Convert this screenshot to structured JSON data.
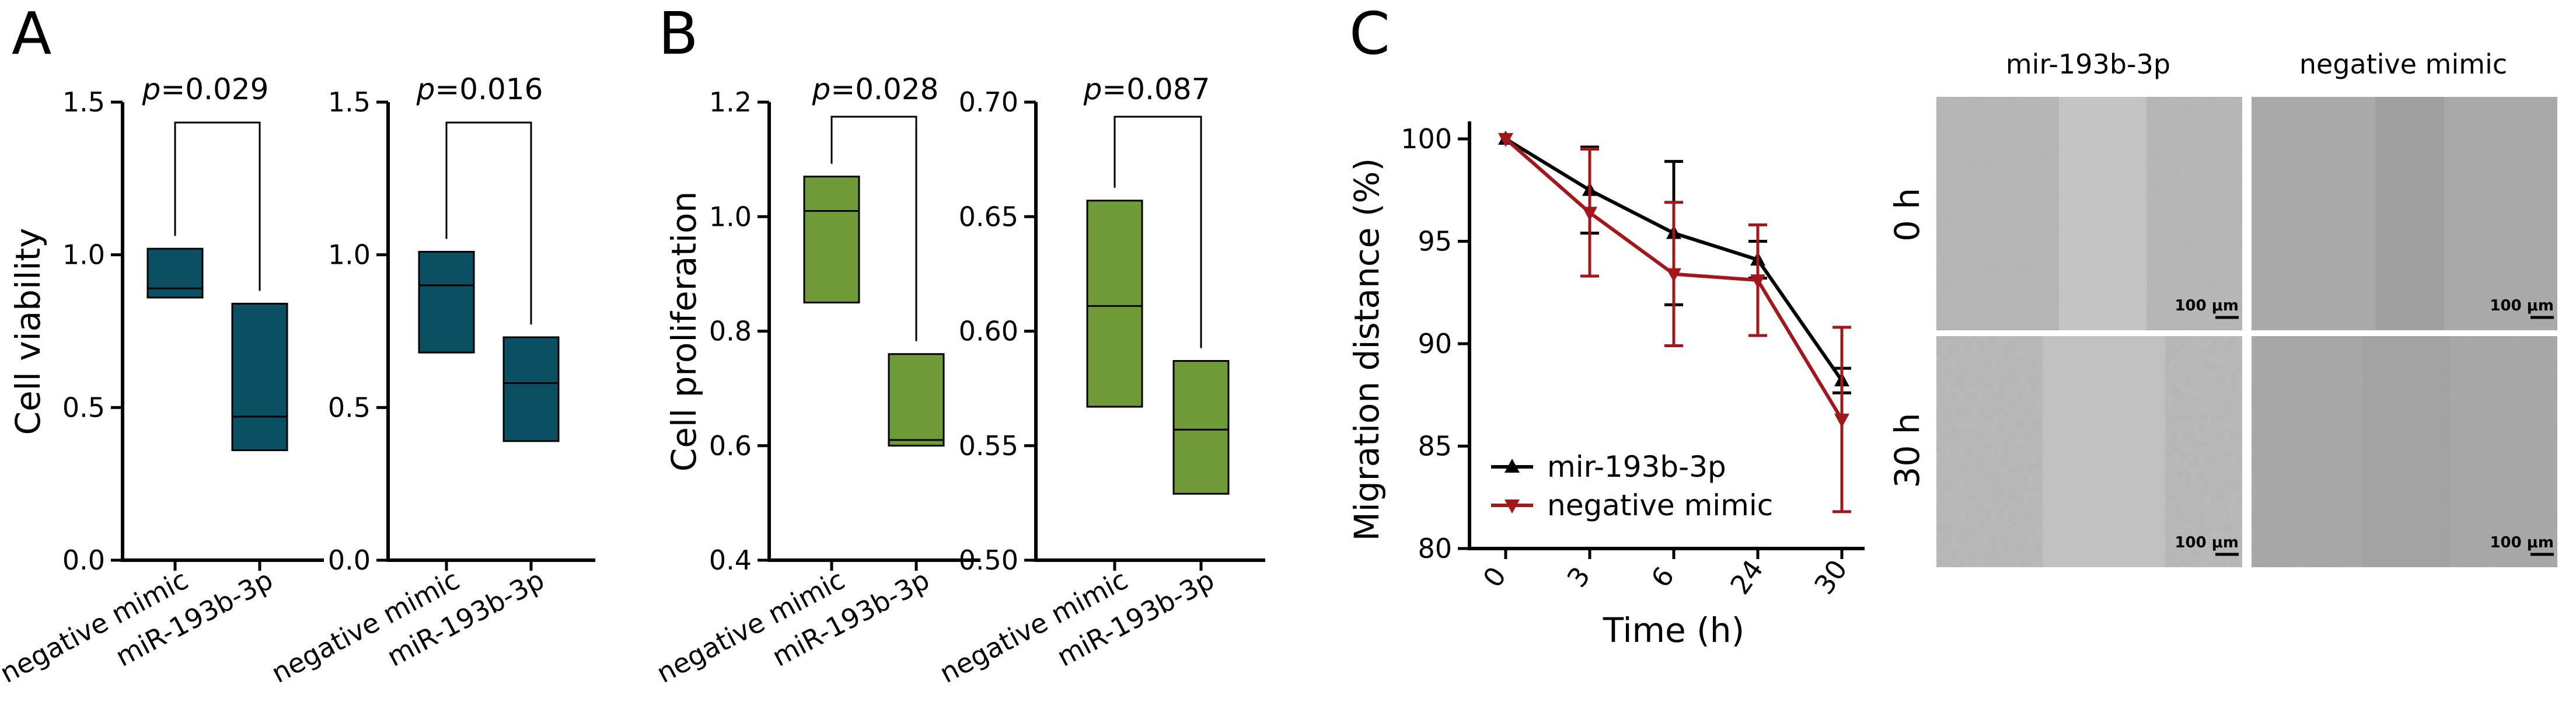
{
  "panels": {
    "A": "A",
    "B": "B",
    "C": "C"
  },
  "colors": {
    "A_fill": "#0b4f63",
    "B_fill": "#6e9a37",
    "series_black": "#000000",
    "series_red": "#a3171a"
  },
  "chart_data": [
    {
      "id": "A1",
      "type": "box",
      "panel": "A",
      "ylabel": "Cell viability",
      "ylim": [
        0.0,
        1.5
      ],
      "yticks": [
        0.0,
        0.5,
        1.0,
        1.5
      ],
      "ytick_labels": [
        "0.0",
        "0.5",
        "1.0",
        "1.5"
      ],
      "categories": [
        "negative mimic",
        "miR-193b-3p"
      ],
      "boxes": [
        {
          "min": 0.86,
          "median": 0.89,
          "max": 1.02
        },
        {
          "min": 0.36,
          "median": 0.47,
          "max": 0.84
        }
      ],
      "pvalue": "p=0.029",
      "p_italic": "p",
      "p_value": "=0.029"
    },
    {
      "id": "A2",
      "type": "box",
      "panel": "A",
      "ylabel": "",
      "ylim": [
        0.0,
        1.5
      ],
      "yticks": [
        0.0,
        0.5,
        1.0,
        1.5
      ],
      "ytick_labels": [
        "0.0",
        "0.5",
        "1.0",
        "1.5"
      ],
      "categories": [
        "negative mimic",
        "miR-193b-3p"
      ],
      "boxes": [
        {
          "min": 0.68,
          "median": 0.9,
          "max": 1.01
        },
        {
          "min": 0.39,
          "median": 0.58,
          "max": 0.73
        }
      ],
      "pvalue": "p=0.016",
      "p_italic": "p",
      "p_value": "=0.016"
    },
    {
      "id": "B1",
      "type": "box",
      "panel": "B",
      "ylabel": "Cell proliferation",
      "ylim": [
        0.4,
        1.2
      ],
      "yticks": [
        0.4,
        0.6,
        0.8,
        1.0,
        1.2
      ],
      "ytick_labels": [
        "0.4",
        "0.6",
        "0.8",
        "1.0",
        "1.2"
      ],
      "categories": [
        "negative mimic",
        "miR-193b-3p"
      ],
      "boxes": [
        {
          "min": 0.85,
          "median": 1.01,
          "max": 1.07
        },
        {
          "min": 0.6,
          "median": 0.61,
          "max": 0.76
        }
      ],
      "pvalue": "p=0.028",
      "p_italic": "p",
      "p_value": "=0.028"
    },
    {
      "id": "B2",
      "type": "box",
      "panel": "B",
      "ylabel": "",
      "ylim": [
        0.5,
        0.7
      ],
      "yticks": [
        0.5,
        0.55,
        0.6,
        0.65,
        0.7
      ],
      "ytick_labels": [
        "0.50",
        "0.55",
        "0.60",
        "0.65",
        "0.70"
      ],
      "categories": [
        "negative mimic",
        "miR-193b-3p"
      ],
      "boxes": [
        {
          "min": 0.567,
          "median": 0.611,
          "max": 0.657
        },
        {
          "min": 0.529,
          "median": 0.557,
          "max": 0.587
        }
      ],
      "pvalue": "p=0.087",
      "p_italic": "p",
      "p_value": "=0.087"
    },
    {
      "id": "C1",
      "type": "line",
      "panel": "C",
      "ylabel": "Migration distance (%)",
      "xlabel": "Time (h)",
      "ylim": [
        80,
        100
      ],
      "yticks": [
        80,
        85,
        90,
        95,
        100
      ],
      "ytick_labels": [
        "80",
        "85",
        "90",
        "95",
        "100"
      ],
      "x": [
        "0",
        "3",
        "6",
        "24",
        "30"
      ],
      "series": [
        {
          "name": "mir-193b-3p",
          "values": [
            100.0,
            97.5,
            95.4,
            94.1,
            88.2
          ],
          "err": [
            0.0,
            2.1,
            3.5,
            0.9,
            0.6
          ]
        },
        {
          "name": "negative mimic",
          "values": [
            100.0,
            96.4,
            93.4,
            93.1,
            86.3
          ],
          "err": [
            0.0,
            3.1,
            3.5,
            2.7,
            4.5
          ]
        }
      ]
    }
  ],
  "micrographs": {
    "columns": [
      "mir-193b-3p",
      "negative mimic"
    ],
    "rows": [
      "0 h",
      "30 h"
    ],
    "scale_bar": "100 μm"
  }
}
